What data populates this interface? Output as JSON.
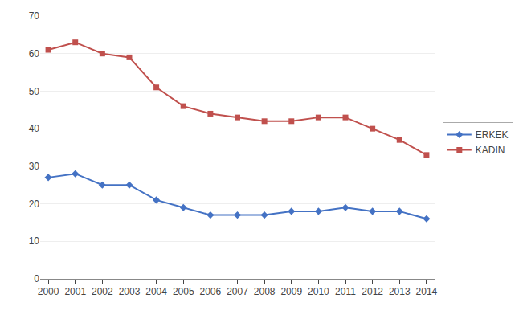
{
  "chart_data": {
    "type": "line",
    "x": [
      2000,
      2001,
      2002,
      2003,
      2004,
      2005,
      2006,
      2007,
      2008,
      2009,
      2010,
      2011,
      2012,
      2013,
      2014
    ],
    "series": [
      {
        "name": "ERKEK",
        "color": "#4472C4",
        "marker": "diamond",
        "values": [
          27,
          28,
          25,
          25,
          21,
          19,
          17,
          17,
          17,
          18,
          18,
          19,
          18,
          18,
          16
        ]
      },
      {
        "name": "KADIN",
        "color": "#C0504D",
        "marker": "square",
        "values": [
          61,
          63,
          60,
          59,
          51,
          46,
          44,
          43,
          42,
          42,
          43,
          43,
          40,
          37,
          33
        ]
      }
    ],
    "xlim": [
      1999.7,
      2014.3
    ],
    "xticks": [
      2000,
      2001,
      2002,
      2003,
      2004,
      2005,
      2006,
      2007,
      2008,
      2009,
      2010,
      2011,
      2012,
      2013,
      2014
    ],
    "ylim": [
      0,
      70
    ],
    "yticks": [
      0,
      10,
      20,
      30,
      40,
      50,
      60,
      70
    ],
    "grid": "y",
    "legend": "right"
  }
}
